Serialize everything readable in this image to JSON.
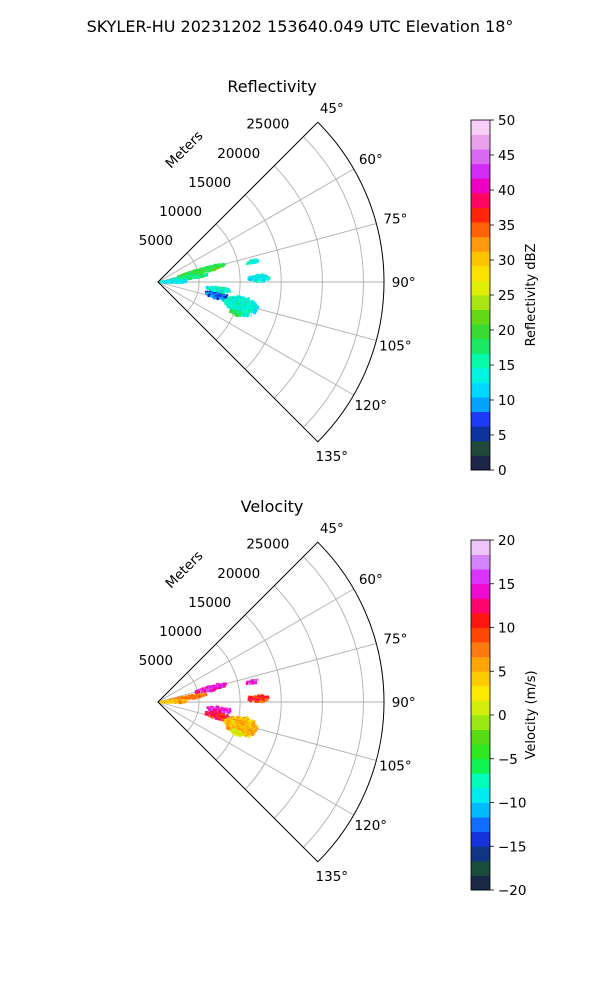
{
  "figure": {
    "suptitle": "SKYLER-HU  20231202  153640.049 UTC Elevation 18°"
  },
  "chart_data": [
    {
      "type": "polar-sector",
      "title": "Reflectivity",
      "radial_label": "Meters",
      "radial_ticks": [
        5000,
        10000,
        15000,
        20000,
        25000
      ],
      "radial_tick_labels": [
        "5000",
        "10000",
        "15000",
        "20000",
        "25000"
      ],
      "rlim": [
        0,
        27500
      ],
      "azimuth_ticks": [
        45,
        60,
        75,
        90,
        105,
        120,
        135
      ],
      "azimuth_tick_labels": [
        "45°",
        "60°",
        "75°",
        "90°",
        "105°",
        "120°",
        "135°"
      ],
      "azimuth_range": [
        45,
        135
      ],
      "grid": true,
      "colorbar": {
        "label": "Reflectivity dBZ",
        "range": [
          0,
          50
        ],
        "ticks": [
          0,
          5,
          10,
          15,
          20,
          25,
          30,
          35,
          40,
          45,
          50
        ],
        "tick_labels": [
          "0",
          "5",
          "10",
          "15",
          "20",
          "25",
          "30",
          "35",
          "40",
          "45",
          "50"
        ]
      },
      "echo_regions": [
        {
          "az_start": 73,
          "az_end": 78,
          "r_start": 2500,
          "r_end": 8500,
          "value": 19
        },
        {
          "az_start": 79,
          "az_end": 84,
          "r_start": 1500,
          "r_end": 6000,
          "value": 17
        },
        {
          "az_start": 84,
          "az_end": 92,
          "r_start": 300,
          "r_end": 3500,
          "value": 13
        },
        {
          "az_start": 77,
          "az_end": 79,
          "r_start": 11000,
          "r_end": 12500,
          "value": 14
        },
        {
          "az_start": 86,
          "az_end": 90,
          "r_start": 11000,
          "r_end": 13500,
          "value": 13
        },
        {
          "az_start": 100,
          "az_end": 106,
          "r_start": 6000,
          "r_end": 9000,
          "value": 8
        },
        {
          "az_start": 100,
          "az_end": 112,
          "r_start": 8500,
          "r_end": 12500,
          "value": 14
        },
        {
          "az_start": 95,
          "az_end": 99,
          "r_start": 6000,
          "r_end": 9000,
          "value": 14
        },
        {
          "az_start": 110,
          "az_end": 113,
          "r_start": 9500,
          "r_end": 11000,
          "value": 18
        }
      ]
    },
    {
      "type": "polar-sector",
      "title": "Velocity",
      "radial_label": "Meters",
      "radial_ticks": [
        5000,
        10000,
        15000,
        20000,
        25000
      ],
      "radial_tick_labels": [
        "5000",
        "10000",
        "15000",
        "20000",
        "25000"
      ],
      "rlim": [
        0,
        27500
      ],
      "azimuth_ticks": [
        45,
        60,
        75,
        90,
        105,
        120,
        135
      ],
      "azimuth_tick_labels": [
        "45°",
        "60°",
        "75°",
        "90°",
        "105°",
        "120°",
        "135°"
      ],
      "azimuth_range": [
        45,
        135
      ],
      "grid": true,
      "colorbar": {
        "label": "Velocity (m/s)",
        "range": [
          -20,
          20
        ],
        "ticks": [
          -20,
          -15,
          -10,
          -5,
          0,
          5,
          10,
          15,
          20
        ],
        "tick_labels": [
          "−20",
          "−15",
          "−10",
          "−5",
          "0",
          "5",
          "10",
          "15",
          "20"
        ]
      },
      "echo_regions": [
        {
          "az_start": 73,
          "az_end": 78,
          "r_start": 4500,
          "r_end": 8500,
          "value": 15
        },
        {
          "az_start": 79,
          "az_end": 84,
          "r_start": 1500,
          "r_end": 6000,
          "value": 7
        },
        {
          "az_start": 84,
          "az_end": 92,
          "r_start": 300,
          "r_end": 3500,
          "value": 5
        },
        {
          "az_start": 77,
          "az_end": 79,
          "r_start": 11000,
          "r_end": 12500,
          "value": 15
        },
        {
          "az_start": 86,
          "az_end": 90,
          "r_start": 11000,
          "r_end": 13500,
          "value": 10
        },
        {
          "az_start": 100,
          "az_end": 106,
          "r_start": 6000,
          "r_end": 9000,
          "value": 11
        },
        {
          "az_start": 100,
          "az_end": 112,
          "r_start": 8500,
          "r_end": 12500,
          "value": 5
        },
        {
          "az_start": 95,
          "az_end": 99,
          "r_start": 6000,
          "r_end": 9000,
          "value": 15
        },
        {
          "az_start": 110,
          "az_end": 113,
          "r_start": 9500,
          "r_end": 11000,
          "value": 2
        }
      ]
    }
  ],
  "colors": {
    "grid": "#b0b0b0",
    "spine": "#000000",
    "tick": "#000000"
  }
}
